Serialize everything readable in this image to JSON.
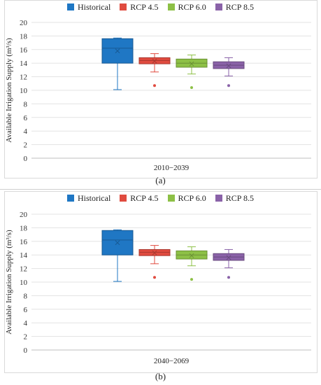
{
  "chart_data": [
    {
      "type": "box",
      "xlabel": "2010−2039",
      "ylabel": "Available Irrigation Supply (m³/s)",
      "ylim": [
        0,
        20
      ],
      "yticks": [
        0,
        2,
        4,
        6,
        8,
        10,
        12,
        14,
        16,
        18,
        20
      ],
      "grid": true,
      "legend_position": "top",
      "caption": "(a)",
      "series": [
        {
          "name": "Historical",
          "color": "#1f77c4",
          "min": 10.1,
          "q1": 14.0,
          "median": 16.2,
          "mean": 15.8,
          "q3": 17.6,
          "max": 17.7,
          "outliers": []
        },
        {
          "name": "RCP 4.5",
          "color": "#e04b3f",
          "min": 12.7,
          "q1": 13.9,
          "median": 14.4,
          "mean": 14.3,
          "q3": 14.8,
          "max": 15.4,
          "outliers": [
            10.7
          ]
        },
        {
          "name": "RCP 6.0",
          "color": "#8dc046",
          "min": 12.4,
          "q1": 13.4,
          "median": 14.0,
          "mean": 13.9,
          "q3": 14.6,
          "max": 15.2,
          "outliers": [
            10.4
          ]
        },
        {
          "name": "RCP 8.5",
          "color": "#8a62a8",
          "min": 12.1,
          "q1": 13.2,
          "median": 13.7,
          "mean": 13.6,
          "q3": 14.2,
          "max": 14.8,
          "outliers": [
            10.7
          ]
        }
      ]
    },
    {
      "type": "box",
      "xlabel": "2040−2069",
      "ylabel": "Available Irrigation Supply (m³/s)",
      "ylim": [
        0,
        20
      ],
      "yticks": [
        0,
        2,
        4,
        6,
        8,
        10,
        12,
        14,
        16,
        18,
        20
      ],
      "grid": true,
      "legend_position": "top",
      "caption": "(b)",
      "series": [
        {
          "name": "Historical",
          "color": "#1f77c4",
          "min": 10.1,
          "q1": 14.0,
          "median": 16.2,
          "mean": 15.8,
          "q3": 17.6,
          "max": 17.7,
          "outliers": []
        },
        {
          "name": "RCP 4.5",
          "color": "#e04b3f",
          "min": 12.7,
          "q1": 13.9,
          "median": 14.4,
          "mean": 14.3,
          "q3": 14.8,
          "max": 15.4,
          "outliers": [
            10.7
          ]
        },
        {
          "name": "RCP 6.0",
          "color": "#8dc046",
          "min": 12.4,
          "q1": 13.4,
          "median": 14.0,
          "mean": 13.9,
          "q3": 14.6,
          "max": 15.2,
          "outliers": [
            10.4
          ]
        },
        {
          "name": "RCP 8.5",
          "color": "#8a62a8",
          "min": 12.1,
          "q1": 13.2,
          "median": 13.7,
          "mean": 13.6,
          "q3": 14.2,
          "max": 14.8,
          "outliers": [
            10.7
          ]
        }
      ]
    }
  ]
}
